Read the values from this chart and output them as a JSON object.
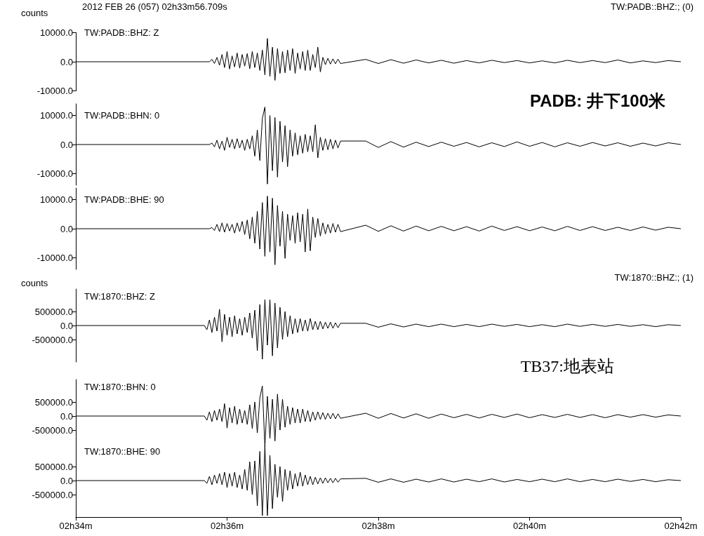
{
  "chart_data": [
    {
      "type": "line",
      "title": "TW:PADB::BHZ: Z",
      "ylabel": "counts",
      "tick_labels": "y",
      "annotations": [
        "2012 FEB 26 (057)  02h33m56.709s",
        "TW:PADB::BHZ:; (0)",
        "PADB: 井下100米"
      ],
      "xlim": [
        "2012-02-26T02:34",
        "2012-02-26T02:42"
      ],
      "ylim": [
        -10000,
        10000
      ],
      "yticks": [
        {
          "value": 10000,
          "label": "10000.0"
        },
        {
          "value": 0,
          "label": "0.0"
        },
        {
          "value": -10000,
          "label": "-10000.0"
        }
      ],
      "x": [
        "2012-02-26T02:34:00",
        "2012-02-26T02:35:42",
        "2012-02-26T02:35:44",
        "2012-02-26T02:35:46",
        "2012-02-26T02:35:48",
        "2012-02-26T02:35:50",
        "2012-02-26T02:35:52",
        "2012-02-26T02:35:54",
        "2012-02-26T02:35:56",
        "2012-02-26T02:35:58",
        "2012-02-26T02:36:00",
        "2012-02-26T02:36:02",
        "2012-02-26T02:36:04",
        "2012-02-26T02:36:06",
        "2012-02-26T02:36:08",
        "2012-02-26T02:36:10",
        "2012-02-26T02:36:12",
        "2012-02-26T02:36:14",
        "2012-02-26T02:36:16",
        "2012-02-26T02:36:18",
        "2012-02-26T02:36:20",
        "2012-02-26T02:36:22",
        "2012-02-26T02:36:24",
        "2012-02-26T02:36:26",
        "2012-02-26T02:36:28",
        "2012-02-26T02:36:30",
        "2012-02-26T02:36:32",
        "2012-02-26T02:36:34",
        "2012-02-26T02:36:36",
        "2012-02-26T02:36:38",
        "2012-02-26T02:36:40",
        "2012-02-26T02:36:42",
        "2012-02-26T02:36:44",
        "2012-02-26T02:36:46",
        "2012-02-26T02:36:48",
        "2012-02-26T02:36:50",
        "2012-02-26T02:36:52",
        "2012-02-26T02:36:54",
        "2012-02-26T02:36:56",
        "2012-02-26T02:36:58",
        "2012-02-26T02:37:00",
        "2012-02-26T02:37:02",
        "2012-02-26T02:37:04",
        "2012-02-26T02:37:06",
        "2012-02-26T02:37:08",
        "2012-02-26T02:37:10",
        "2012-02-26T02:37:12",
        "2012-02-26T02:37:14",
        "2012-02-26T02:37:16",
        "2012-02-26T02:37:18",
        "2012-02-26T02:37:20",
        "2012-02-26T02:37:22",
        "2012-02-26T02:37:24",
        "2012-02-26T02:37:26",
        "2012-02-26T02:37:28",
        "2012-02-26T02:37:30",
        "2012-02-26T02:37:50",
        "2012-02-26T02:38:00",
        "2012-02-26T02:38:10",
        "2012-02-26T02:38:20",
        "2012-02-26T02:38:30",
        "2012-02-26T02:38:40",
        "2012-02-26T02:38:50",
        "2012-02-26T02:39:00",
        "2012-02-26T02:39:10",
        "2012-02-26T02:39:20",
        "2012-02-26T02:39:30",
        "2012-02-26T02:39:40",
        "2012-02-26T02:39:50",
        "2012-02-26T02:40:00",
        "2012-02-26T02:40:10",
        "2012-02-26T02:40:20",
        "2012-02-26T02:40:30",
        "2012-02-26T02:40:40",
        "2012-02-26T02:40:50",
        "2012-02-26T02:41:00",
        "2012-02-26T02:41:10",
        "2012-02-26T02:41:20",
        "2012-02-26T02:41:30",
        "2012-02-26T02:41:40",
        "2012-02-26T02:41:50",
        "2012-02-26T02:42:00"
      ],
      "series": [
        {
          "color": "#000000",
          "values": [
            0,
            0,
            0,
            0,
            800,
            -600,
            1500,
            -1200,
            2500,
            -2000,
            3500,
            -2500,
            2000,
            -1800,
            3000,
            -2200,
            2500,
            -1500,
            2800,
            -2400,
            3500,
            -2000,
            3000,
            -3000,
            4000,
            -4500,
            8000,
            -5000,
            5000,
            -6400,
            4500,
            -4000,
            3500,
            -3800,
            4000,
            -3000,
            4500,
            -4000,
            3000,
            -2500,
            3500,
            -3000,
            4000,
            -3000,
            2500,
            -2000,
            5000,
            -3500,
            1500,
            -1000,
            1200,
            -800,
            1000,
            -700,
            900,
            -600,
            800,
            -600,
            700,
            -500,
            600,
            -400,
            500,
            -500,
            400,
            -400,
            500,
            -300,
            400,
            -400,
            300,
            -400,
            500,
            -300,
            400,
            -300,
            600,
            -400,
            300,
            -300,
            400,
            0
          ]
        }
      ]
    },
    {
      "type": "line",
      "title": "TW:PADB::BHN: 0",
      "tick_labels": "y",
      "xlim": [
        "2012-02-26T02:34",
        "2012-02-26T02:42"
      ],
      "ylim": [
        -14000,
        14000
      ],
      "yticks": [
        {
          "value": 10000,
          "label": "10000.0"
        },
        {
          "value": 0,
          "label": "0.0"
        },
        {
          "value": -10000,
          "label": "-10000.0"
        }
      ],
      "x": [
        "2012-02-26T02:34:00",
        "2012-02-26T02:35:42",
        "2012-02-26T02:35:44",
        "2012-02-26T02:35:46",
        "2012-02-26T02:35:48",
        "2012-02-26T02:35:50",
        "2012-02-26T02:35:52",
        "2012-02-26T02:35:54",
        "2012-02-26T02:35:56",
        "2012-02-26T02:35:58",
        "2012-02-26T02:36:00",
        "2012-02-26T02:36:02",
        "2012-02-26T02:36:04",
        "2012-02-26T02:36:06",
        "2012-02-26T02:36:08",
        "2012-02-26T02:36:10",
        "2012-02-26T02:36:12",
        "2012-02-26T02:36:14",
        "2012-02-26T02:36:16",
        "2012-02-26T02:36:18",
        "2012-02-26T02:36:20",
        "2012-02-26T02:36:22",
        "2012-02-26T02:36:24",
        "2012-02-26T02:36:26",
        "2012-02-26T02:36:28",
        "2012-02-26T02:36:30",
        "2012-02-26T02:36:32",
        "2012-02-26T02:36:34",
        "2012-02-26T02:36:36",
        "2012-02-26T02:36:38",
        "2012-02-26T02:36:40",
        "2012-02-26T02:36:42",
        "2012-02-26T02:36:44",
        "2012-02-26T02:36:46",
        "2012-02-26T02:36:48",
        "2012-02-26T02:36:50",
        "2012-02-26T02:36:52",
        "2012-02-26T02:36:54",
        "2012-02-26T02:36:56",
        "2012-02-26T02:36:58",
        "2012-02-26T02:37:00",
        "2012-02-26T02:37:02",
        "2012-02-26T02:37:04",
        "2012-02-26T02:37:06",
        "2012-02-26T02:37:08",
        "2012-02-26T02:37:10",
        "2012-02-26T02:37:12",
        "2012-02-26T02:37:14",
        "2012-02-26T02:37:16",
        "2012-02-26T02:37:18",
        "2012-02-26T02:37:20",
        "2012-02-26T02:37:22",
        "2012-02-26T02:37:24",
        "2012-02-26T02:37:26",
        "2012-02-26T02:37:28",
        "2012-02-26T02:37:30",
        "2012-02-26T02:37:50",
        "2012-02-26T02:38:00",
        "2012-02-26T02:38:10",
        "2012-02-26T02:38:20",
        "2012-02-26T02:38:30",
        "2012-02-26T02:38:40",
        "2012-02-26T02:38:50",
        "2012-02-26T02:39:00",
        "2012-02-26T02:39:10",
        "2012-02-26T02:39:20",
        "2012-02-26T02:39:30",
        "2012-02-26T02:39:40",
        "2012-02-26T02:39:50",
        "2012-02-26T02:40:00",
        "2012-02-26T02:40:10",
        "2012-02-26T02:40:20",
        "2012-02-26T02:40:30",
        "2012-02-26T02:40:40",
        "2012-02-26T02:40:50",
        "2012-02-26T02:41:00",
        "2012-02-26T02:41:10",
        "2012-02-26T02:41:20",
        "2012-02-26T02:41:30",
        "2012-02-26T02:41:40",
        "2012-02-26T02:41:50",
        "2012-02-26T02:42:00"
      ],
      "series": [
        {
          "color": "#000000",
          "values": [
            0,
            0,
            0,
            0,
            500,
            -800,
            1500,
            -1500,
            1200,
            -2000,
            2500,
            -1000,
            1800,
            -1500,
            2000,
            -1200,
            1500,
            -2000,
            1800,
            -1500,
            3000,
            -4000,
            5000,
            -5500,
            9000,
            12900,
            -13600,
            10000,
            -9000,
            9300,
            -11200,
            8000,
            -6000,
            6500,
            -7600,
            5000,
            -4000,
            4000,
            -3500,
            3000,
            -3000,
            3500,
            -2500,
            3000,
            -2500,
            6800,
            -4600,
            2500,
            -2000,
            2000,
            -1800,
            1800,
            -1500,
            1500,
            -1200,
            1200,
            1200,
            -1000,
            1000,
            -900,
            800,
            -700,
            800,
            -600,
            700,
            -800,
            600,
            -700,
            900,
            -600,
            700,
            -800,
            600,
            -600,
            700,
            -500,
            600,
            -600,
            500,
            -500,
            600,
            0
          ]
        }
      ]
    },
    {
      "type": "line",
      "title": "TW:PADB::BHE: 90",
      "tick_labels": "y",
      "xlim": [
        "2012-02-26T02:34",
        "2012-02-26T02:42"
      ],
      "ylim": [
        -14000,
        14000
      ],
      "yticks": [
        {
          "value": 10000,
          "label": "10000.0"
        },
        {
          "value": 0,
          "label": "0.0"
        },
        {
          "value": -10000,
          "label": "-10000.0"
        }
      ],
      "x": [
        "2012-02-26T02:34:00",
        "2012-02-26T02:35:42",
        "2012-02-26T02:35:44",
        "2012-02-26T02:35:46",
        "2012-02-26T02:35:48",
        "2012-02-26T02:35:50",
        "2012-02-26T02:35:52",
        "2012-02-26T02:35:54",
        "2012-02-26T02:35:56",
        "2012-02-26T02:35:58",
        "2012-02-26T02:36:00",
        "2012-02-26T02:36:02",
        "2012-02-26T02:36:04",
        "2012-02-26T02:36:06",
        "2012-02-26T02:36:08",
        "2012-02-26T02:36:10",
        "2012-02-26T02:36:12",
        "2012-02-26T02:36:14",
        "2012-02-26T02:36:16",
        "2012-02-26T02:36:18",
        "2012-02-26T02:36:20",
        "2012-02-26T02:36:22",
        "2012-02-26T02:36:24",
        "2012-02-26T02:36:26",
        "2012-02-26T02:36:28",
        "2012-02-26T02:36:30",
        "2012-02-26T02:36:32",
        "2012-02-26T02:36:34",
        "2012-02-26T02:36:36",
        "2012-02-26T02:36:38",
        "2012-02-26T02:36:40",
        "2012-02-26T02:36:42",
        "2012-02-26T02:36:44",
        "2012-02-26T02:36:46",
        "2012-02-26T02:36:48",
        "2012-02-26T02:36:50",
        "2012-02-26T02:36:52",
        "2012-02-26T02:36:54",
        "2012-02-26T02:36:56",
        "2012-02-26T02:36:58",
        "2012-02-26T02:37:00",
        "2012-02-26T02:37:02",
        "2012-02-26T02:37:04",
        "2012-02-26T02:37:06",
        "2012-02-26T02:37:08",
        "2012-02-26T02:37:10",
        "2012-02-26T02:37:12",
        "2012-02-26T02:37:14",
        "2012-02-26T02:37:16",
        "2012-02-26T02:37:18",
        "2012-02-26T02:37:20",
        "2012-02-26T02:37:22",
        "2012-02-26T02:37:24",
        "2012-02-26T02:37:26",
        "2012-02-26T02:37:28",
        "2012-02-26T02:37:30",
        "2012-02-26T02:37:50",
        "2012-02-26T02:38:00",
        "2012-02-26T02:38:10",
        "2012-02-26T02:38:20",
        "2012-02-26T02:38:30",
        "2012-02-26T02:38:40",
        "2012-02-26T02:38:50",
        "2012-02-26T02:39:00",
        "2012-02-26T02:39:10",
        "2012-02-26T02:39:20",
        "2012-02-26T02:39:30",
        "2012-02-26T02:39:40",
        "2012-02-26T02:39:50",
        "2012-02-26T02:40:00",
        "2012-02-26T02:40:10",
        "2012-02-26T02:40:20",
        "2012-02-26T02:40:30",
        "2012-02-26T02:40:40",
        "2012-02-26T02:40:50",
        "2012-02-26T02:41:00",
        "2012-02-26T02:41:10",
        "2012-02-26T02:41:20",
        "2012-02-26T02:41:30",
        "2012-02-26T02:41:40",
        "2012-02-26T02:41:50",
        "2012-02-26T02:42:00"
      ],
      "series": [
        {
          "color": "#000000",
          "values": [
            0,
            0,
            0,
            0,
            400,
            -600,
            1500,
            -1000,
            2000,
            -1200,
            1800,
            -800,
            1500,
            -1500,
            2000,
            -1000,
            2500,
            -2000,
            3000,
            -3500,
            4000,
            -5000,
            6000,
            -7000,
            9000,
            -9500,
            11200,
            -8000,
            10500,
            -12400,
            8000,
            -6000,
            6000,
            -10200,
            5000,
            -4000,
            4500,
            -5000,
            5500,
            -4500,
            5000,
            -8000,
            6800,
            -7600,
            4000,
            -3000,
            3500,
            -2500,
            2000,
            -1800,
            1500,
            -1500,
            1800,
            -1200,
            1500,
            -1000,
            1200,
            -900,
            1000,
            -800,
            900,
            -700,
            800,
            -700,
            700,
            -800,
            900,
            -600,
            700,
            -700,
            600,
            -700,
            800,
            -600,
            700,
            -600,
            500,
            -600,
            600,
            -500,
            500,
            0
          ]
        }
      ]
    },
    {
      "type": "line",
      "title": "TW:1870::BHZ: Z",
      "ylabel": "counts",
      "tick_labels": "y",
      "annotations": [
        "TW:1870::BHZ:; (1)",
        "TB37:地表站"
      ],
      "xlim": [
        "2012-02-26T02:34",
        "2012-02-26T02:42"
      ],
      "ylim": [
        -1300000,
        1300000
      ],
      "yticks": [
        {
          "value": 500000,
          "label": "500000.0"
        },
        {
          "value": 0,
          "label": "0.0"
        },
        {
          "value": -500000,
          "label": "-500000.0"
        }
      ],
      "x": [
        "2012-02-26T02:34:00",
        "2012-02-26T02:35:42",
        "2012-02-26T02:35:44",
        "2012-02-26T02:35:46",
        "2012-02-26T02:35:48",
        "2012-02-26T02:35:50",
        "2012-02-26T02:35:52",
        "2012-02-26T02:35:54",
        "2012-02-26T02:35:56",
        "2012-02-26T02:35:58",
        "2012-02-26T02:36:00",
        "2012-02-26T02:36:02",
        "2012-02-26T02:36:04",
        "2012-02-26T02:36:06",
        "2012-02-26T02:36:08",
        "2012-02-26T02:36:10",
        "2012-02-26T02:36:12",
        "2012-02-26T02:36:14",
        "2012-02-26T02:36:16",
        "2012-02-26T02:36:18",
        "2012-02-26T02:36:20",
        "2012-02-26T02:36:22",
        "2012-02-26T02:36:24",
        "2012-02-26T02:36:26",
        "2012-02-26T02:36:28",
        "2012-02-26T02:36:30",
        "2012-02-26T02:36:32",
        "2012-02-26T02:36:34",
        "2012-02-26T02:36:36",
        "2012-02-26T02:36:38",
        "2012-02-26T02:36:40",
        "2012-02-26T02:36:42",
        "2012-02-26T02:36:44",
        "2012-02-26T02:36:46",
        "2012-02-26T02:36:48",
        "2012-02-26T02:36:50",
        "2012-02-26T02:36:52",
        "2012-02-26T02:36:54",
        "2012-02-26T02:36:56",
        "2012-02-26T02:36:58",
        "2012-02-26T02:37:00",
        "2012-02-26T02:37:02",
        "2012-02-26T02:37:04",
        "2012-02-26T02:37:06",
        "2012-02-26T02:37:08",
        "2012-02-26T02:37:10",
        "2012-02-26T02:37:12",
        "2012-02-26T02:37:14",
        "2012-02-26T02:37:16",
        "2012-02-26T02:37:18",
        "2012-02-26T02:37:20",
        "2012-02-26T02:37:22",
        "2012-02-26T02:37:24",
        "2012-02-26T02:37:26",
        "2012-02-26T02:37:28",
        "2012-02-26T02:37:30",
        "2012-02-26T02:37:50",
        "2012-02-26T02:38:00",
        "2012-02-26T02:38:10",
        "2012-02-26T02:38:20",
        "2012-02-26T02:38:30",
        "2012-02-26T02:38:40",
        "2012-02-26T02:38:50",
        "2012-02-26T02:39:00",
        "2012-02-26T02:39:10",
        "2012-02-26T02:39:20",
        "2012-02-26T02:39:30",
        "2012-02-26T02:39:40",
        "2012-02-26T02:39:50",
        "2012-02-26T02:40:00",
        "2012-02-26T02:40:10",
        "2012-02-26T02:40:20",
        "2012-02-26T02:40:30",
        "2012-02-26T02:40:40",
        "2012-02-26T02:40:50",
        "2012-02-26T02:41:00",
        "2012-02-26T02:41:10",
        "2012-02-26T02:41:20",
        "2012-02-26T02:41:30",
        "2012-02-26T02:41:40",
        "2012-02-26T02:41:50",
        "2012-02-26T02:42:00"
      ],
      "series": [
        {
          "color": "#000000",
          "values": [
            0,
            0,
            -150000,
            200000,
            -250000,
            300000,
            -200000,
            580000,
            -580000,
            400000,
            -350000,
            300000,
            -400000,
            350000,
            -300000,
            250000,
            -350000,
            300000,
            -250000,
            450000,
            -450000,
            550000,
            -900000,
            750000,
            -1200000,
            920000,
            -700000,
            920000,
            -1080000,
            800000,
            -800000,
            650000,
            -500000,
            500000,
            -400000,
            350000,
            -300000,
            250000,
            -250000,
            250000,
            -200000,
            200000,
            -200000,
            250000,
            -150000,
            150000,
            -150000,
            150000,
            -120000,
            120000,
            -100000,
            120000,
            -100000,
            100000,
            -80000,
            80000,
            80000,
            -60000,
            60000,
            -50000,
            50000,
            -40000,
            50000,
            -40000,
            40000,
            -40000,
            50000,
            -30000,
            40000,
            -40000,
            30000,
            -40000,
            50000,
            -30000,
            40000,
            -30000,
            40000,
            -30000,
            30000,
            -40000,
            30000,
            0
          ]
        }
      ]
    },
    {
      "type": "line",
      "title": "TW:1870::BHN: 0",
      "tick_labels": "y",
      "xlim": [
        "2012-02-26T02:34",
        "2012-02-26T02:42"
      ],
      "ylim": [
        -1300000,
        1300000
      ],
      "yticks": [
        {
          "value": 500000,
          "label": "500000.0"
        },
        {
          "value": 0,
          "label": "0.0"
        },
        {
          "value": -500000,
          "label": "-500000.0"
        }
      ],
      "x": [
        "2012-02-26T02:34:00",
        "2012-02-26T02:35:42",
        "2012-02-26T02:35:44",
        "2012-02-26T02:35:46",
        "2012-02-26T02:35:48",
        "2012-02-26T02:35:50",
        "2012-02-26T02:35:52",
        "2012-02-26T02:35:54",
        "2012-02-26T02:35:56",
        "2012-02-26T02:35:58",
        "2012-02-26T02:36:00",
        "2012-02-26T02:36:02",
        "2012-02-26T02:36:04",
        "2012-02-26T02:36:06",
        "2012-02-26T02:36:08",
        "2012-02-26T02:36:10",
        "2012-02-26T02:36:12",
        "2012-02-26T02:36:14",
        "2012-02-26T02:36:16",
        "2012-02-26T02:36:18",
        "2012-02-26T02:36:20",
        "2012-02-26T02:36:22",
        "2012-02-26T02:36:24",
        "2012-02-26T02:36:26",
        "2012-02-26T02:36:28",
        "2012-02-26T02:36:30",
        "2012-02-26T02:36:32",
        "2012-02-26T02:36:34",
        "2012-02-26T02:36:36",
        "2012-02-26T02:36:38",
        "2012-02-26T02:36:40",
        "2012-02-26T02:36:42",
        "2012-02-26T02:36:44",
        "2012-02-26T02:36:46",
        "2012-02-26T02:36:48",
        "2012-02-26T02:36:50",
        "2012-02-26T02:36:52",
        "2012-02-26T02:36:54",
        "2012-02-26T02:36:56",
        "2012-02-26T02:36:58",
        "2012-02-26T02:37:00",
        "2012-02-26T02:37:02",
        "2012-02-26T02:37:04",
        "2012-02-26T02:37:06",
        "2012-02-26T02:37:08",
        "2012-02-26T02:37:10",
        "2012-02-26T02:37:12",
        "2012-02-26T02:37:14",
        "2012-02-26T02:37:16",
        "2012-02-26T02:37:18",
        "2012-02-26T02:37:20",
        "2012-02-26T02:37:22",
        "2012-02-26T02:37:24",
        "2012-02-26T02:37:26",
        "2012-02-26T02:37:28",
        "2012-02-26T02:37:30",
        "2012-02-26T02:37:50",
        "2012-02-26T02:38:00",
        "2012-02-26T02:38:10",
        "2012-02-26T02:38:20",
        "2012-02-26T02:38:30",
        "2012-02-26T02:38:40",
        "2012-02-26T02:38:50",
        "2012-02-26T02:39:00",
        "2012-02-26T02:39:10",
        "2012-02-26T02:39:20",
        "2012-02-26T02:39:30",
        "2012-02-26T02:39:40",
        "2012-02-26T02:39:50",
        "2012-02-26T02:40:00",
        "2012-02-26T02:40:10",
        "2012-02-26T02:40:20",
        "2012-02-26T02:40:30",
        "2012-02-26T02:40:40",
        "2012-02-26T02:40:50",
        "2012-02-26T02:41:00",
        "2012-02-26T02:41:10",
        "2012-02-26T02:41:20",
        "2012-02-26T02:41:30",
        "2012-02-26T02:41:40",
        "2012-02-26T02:41:50",
        "2012-02-26T02:42:00"
      ],
      "series": [
        {
          "color": "#000000",
          "values": [
            0,
            0,
            -150000,
            150000,
            -200000,
            200000,
            -150000,
            250000,
            -200000,
            440000,
            -430000,
            300000,
            -250000,
            350000,
            -300000,
            250000,
            -250000,
            200000,
            -300000,
            400000,
            -450000,
            500000,
            -600000,
            650000,
            1070000,
            -1100000,
            700000,
            -800000,
            600000,
            -890000,
            780000,
            -500000,
            600000,
            -400000,
            350000,
            -300000,
            300000,
            -250000,
            250000,
            -250000,
            250000,
            -200000,
            200000,
            -200000,
            150000,
            -150000,
            150000,
            -120000,
            120000,
            -120000,
            100000,
            -100000,
            100000,
            -100000,
            80000,
            -80000,
            100000,
            -80000,
            90000,
            -70000,
            80000,
            -80000,
            70000,
            -60000,
            60000,
            -70000,
            60000,
            -50000,
            70000,
            -60000,
            50000,
            -50000,
            60000,
            -50000,
            50000,
            -60000,
            50000,
            -40000,
            50000,
            -40000,
            40000,
            0
          ]
        }
      ]
    },
    {
      "type": "line",
      "title": "TW:1870::BHE: 90",
      "xlim": [
        "2012-02-26T02:34",
        "2012-02-26T02:42"
      ],
      "ylim": [
        -1300000,
        1300000
      ],
      "xticks": [
        {
          "value": "2012-02-26T02:34",
          "label": "02h34m"
        },
        {
          "value": "2012-02-26T02:36",
          "label": "02h36m"
        },
        {
          "value": "2012-02-26T02:38",
          "label": "02h38m"
        },
        {
          "value": "2012-02-26T02:40",
          "label": "02h40m"
        },
        {
          "value": "2012-02-26T02:42",
          "label": "02h42m"
        }
      ],
      "yticks": [
        {
          "value": 500000,
          "label": "500000.0"
        },
        {
          "value": 0,
          "label": "0.0"
        },
        {
          "value": -500000,
          "label": "-500000.0"
        }
      ],
      "x": [
        "2012-02-26T02:34:00",
        "2012-02-26T02:35:42",
        "2012-02-26T02:35:44",
        "2012-02-26T02:35:46",
        "2012-02-26T02:35:48",
        "2012-02-26T02:35:50",
        "2012-02-26T02:35:52",
        "2012-02-26T02:35:54",
        "2012-02-26T02:35:56",
        "2012-02-26T02:35:58",
        "2012-02-26T02:36:00",
        "2012-02-26T02:36:02",
        "2012-02-26T02:36:04",
        "2012-02-26T02:36:06",
        "2012-02-26T02:36:08",
        "2012-02-26T02:36:10",
        "2012-02-26T02:36:12",
        "2012-02-26T02:36:14",
        "2012-02-26T02:36:16",
        "2012-02-26T02:36:18",
        "2012-02-26T02:36:20",
        "2012-02-26T02:36:22",
        "2012-02-26T02:36:24",
        "2012-02-26T02:36:26",
        "2012-02-26T02:36:28",
        "2012-02-26T02:36:30",
        "2012-02-26T02:36:32",
        "2012-02-26T02:36:34",
        "2012-02-26T02:36:36",
        "2012-02-26T02:36:38",
        "2012-02-26T02:36:40",
        "2012-02-26T02:36:42",
        "2012-02-26T02:36:44",
        "2012-02-26T02:36:46",
        "2012-02-26T02:36:48",
        "2012-02-26T02:36:50",
        "2012-02-26T02:36:52",
        "2012-02-26T02:36:54",
        "2012-02-26T02:36:56",
        "2012-02-26T02:36:58",
        "2012-02-26T02:37:00",
        "2012-02-26T02:37:02",
        "2012-02-26T02:37:04",
        "2012-02-26T02:37:06",
        "2012-02-26T02:37:08",
        "2012-02-26T02:37:10",
        "2012-02-26T02:37:12",
        "2012-02-26T02:37:14",
        "2012-02-26T02:37:16",
        "2012-02-26T02:37:18",
        "2012-02-26T02:37:20",
        "2012-02-26T02:37:22",
        "2012-02-26T02:37:24",
        "2012-02-26T02:37:26",
        "2012-02-26T02:37:28",
        "2012-02-26T02:37:30",
        "2012-02-26T02:37:50",
        "2012-02-26T02:38:00",
        "2012-02-26T02:38:10",
        "2012-02-26T02:38:20",
        "2012-02-26T02:38:30",
        "2012-02-26T02:38:40",
        "2012-02-26T02:38:50",
        "2012-02-26T02:39:00",
        "2012-02-26T02:39:10",
        "2012-02-26T02:39:20",
        "2012-02-26T02:39:30",
        "2012-02-26T02:39:40",
        "2012-02-26T02:39:50",
        "2012-02-26T02:40:00",
        "2012-02-26T02:40:10",
        "2012-02-26T02:40:20",
        "2012-02-26T02:40:30",
        "2012-02-26T02:40:40",
        "2012-02-26T02:40:50",
        "2012-02-26T02:41:00",
        "2012-02-26T02:41:10",
        "2012-02-26T02:41:20",
        "2012-02-26T02:41:30",
        "2012-02-26T02:41:40",
        "2012-02-26T02:41:50",
        "2012-02-26T02:42:00"
      ],
      "series": [
        {
          "color": "#000000",
          "values": [
            0,
            0,
            -100000,
            150000,
            -150000,
            200000,
            -100000,
            250000,
            -150000,
            300000,
            -250000,
            250000,
            -200000,
            300000,
            -250000,
            200000,
            -300000,
            400000,
            -350000,
            670000,
            -500000,
            700000,
            -900000,
            1040000,
            -1250000,
            1250000,
            -1250000,
            900000,
            -1000000,
            580000,
            -600000,
            500000,
            -750000,
            400000,
            -350000,
            350000,
            -300000,
            250000,
            -200000,
            300000,
            -200000,
            200000,
            -150000,
            150000,
            -150000,
            120000,
            -120000,
            100000,
            -100000,
            100000,
            -80000,
            80000,
            -80000,
            80000,
            -60000,
            60000,
            80000,
            -60000,
            60000,
            -60000,
            50000,
            -50000,
            60000,
            -50000,
            50000,
            -40000,
            60000,
            -50000,
            40000,
            -40000,
            50000,
            -40000,
            60000,
            -40000,
            40000,
            -40000,
            50000,
            -30000,
            40000,
            -40000,
            30000,
            0
          ]
        }
      ]
    }
  ]
}
